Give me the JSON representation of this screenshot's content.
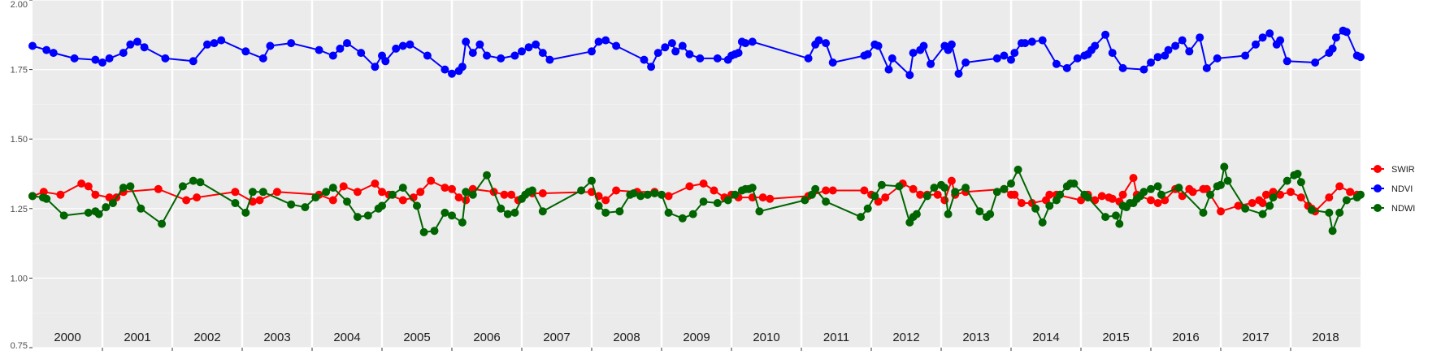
{
  "chart_data": {
    "type": "line",
    "title": "",
    "xlabel": "",
    "ylabel": "",
    "x_range": [
      2000.0,
      2019.0
    ],
    "ylim": [
      0.75,
      2.0
    ],
    "y_ticks": [
      0.75,
      1.0,
      1.25,
      1.5,
      1.75,
      2.0
    ],
    "y_tick_labels": [
      "0.75",
      "1.00",
      "1.25",
      "1.50",
      "1.75",
      "2.00"
    ],
    "year_labels": [
      "2000",
      "2001",
      "2002",
      "2003",
      "2004",
      "2005",
      "2006",
      "2007",
      "2008",
      "2009",
      "2010",
      "2011",
      "2012",
      "2013",
      "2014",
      "2015",
      "2016",
      "2017",
      "2018"
    ],
    "grid": true,
    "legend_position": "right",
    "marker": "circle",
    "series": [
      {
        "name": "SWIR",
        "color": "#ff0000",
        "x": [
          2000.0,
          2000.16,
          2000.4,
          2000.7,
          2000.8,
          2000.9,
          2001.1,
          2001.2,
          2001.3,
          2001.8,
          2002.2,
          2002.35,
          2002.9,
          2003.15,
          2003.25,
          2003.5,
          2004.1,
          2004.3,
          2004.45,
          2004.65,
          2004.9,
          2005.0,
          2005.1,
          2005.3,
          2005.45,
          2005.55,
          2005.7,
          2005.9,
          2006.0,
          2006.1,
          2006.2,
          2006.3,
          2006.6,
          2006.75,
          2006.85,
          2006.95,
          2007.15,
          2007.3,
          2008.0,
          2008.1,
          2008.2,
          2008.35,
          2008.65,
          2008.9,
          2009.1,
          2009.4,
          2009.6,
          2009.75,
          2009.9,
          2010.0,
          2010.1,
          2010.3,
          2010.45,
          2010.55,
          2011.1,
          2011.35,
          2011.45,
          2011.9,
          2012.0,
          2012.1,
          2012.2,
          2012.45,
          2012.6,
          2012.7,
          2012.8,
          2012.95,
          2013.05,
          2013.15,
          2013.2,
          2013.35,
          2013.9,
          2014.0,
          2014.05,
          2014.15,
          2014.3,
          2014.5,
          2014.55,
          2014.65,
          2015.0,
          2015.1,
          2015.2,
          2015.3,
          2015.4,
          2015.45,
          2015.55,
          2015.6,
          2015.75,
          2015.8,
          2016.0,
          2016.1,
          2016.2,
          2016.35,
          2016.45,
          2016.55,
          2016.6,
          2016.75,
          2016.8,
          2017.0,
          2017.25,
          2017.45,
          2017.55,
          2017.6,
          2017.65,
          2017.75,
          2017.85,
          2018.0,
          2018.15,
          2018.25,
          2018.3,
          2018.35,
          2018.55,
          2018.7,
          2018.85,
          2018.95
        ],
        "values": [
          1.295,
          1.31,
          1.3,
          1.34,
          1.33,
          1.3,
          1.29,
          1.29,
          1.31,
          1.32,
          1.28,
          1.29,
          1.31,
          1.275,
          1.28,
          1.31,
          1.3,
          1.28,
          1.33,
          1.31,
          1.34,
          1.31,
          1.3,
          1.28,
          1.29,
          1.31,
          1.35,
          1.325,
          1.32,
          1.29,
          1.28,
          1.32,
          1.31,
          1.3,
          1.3,
          1.28,
          1.305,
          1.305,
          1.31,
          1.295,
          1.28,
          1.315,
          1.31,
          1.31,
          1.295,
          1.33,
          1.34,
          1.315,
          1.29,
          1.3,
          1.29,
          1.29,
          1.29,
          1.285,
          1.295,
          1.315,
          1.315,
          1.315,
          1.3,
          1.275,
          1.29,
          1.34,
          1.32,
          1.3,
          1.3,
          1.3,
          1.28,
          1.35,
          1.3,
          1.31,
          1.32,
          1.3,
          1.3,
          1.27,
          1.27,
          1.28,
          1.3,
          1.3,
          1.28,
          1.3,
          1.28,
          1.295,
          1.29,
          1.285,
          1.275,
          1.3,
          1.36,
          1.3,
          1.28,
          1.27,
          1.28,
          1.32,
          1.295,
          1.32,
          1.31,
          1.32,
          1.32,
          1.24,
          1.26,
          1.27,
          1.28,
          1.27,
          1.3,
          1.31,
          1.3,
          1.31,
          1.29,
          1.26,
          1.25,
          1.24,
          1.29,
          1.33,
          1.31,
          1.3
        ]
      },
      {
        "name": "NDVI",
        "color": "#0000ff",
        "x": [
          2000.0,
          2000.2,
          2000.3,
          2000.6,
          2000.9,
          2001.0,
          2001.1,
          2001.3,
          2001.4,
          2001.5,
          2001.6,
          2001.9,
          2002.3,
          2002.5,
          2002.6,
          2002.7,
          2003.05,
          2003.3,
          2003.4,
          2003.7,
          2004.1,
          2004.3,
          2004.4,
          2004.5,
          2004.7,
          2004.9,
          2005.0,
          2005.05,
          2005.2,
          2005.3,
          2005.4,
          2005.65,
          2005.9,
          2006.0,
          2006.1,
          2006.15,
          2006.2,
          2006.3,
          2006.4,
          2006.5,
          2006.7,
          2006.9,
          2007.0,
          2007.1,
          2007.2,
          2007.3,
          2007.4,
          2008.0,
          2008.1,
          2008.2,
          2008.35,
          2008.75,
          2008.85,
          2008.95,
          2009.05,
          2009.15,
          2009.2,
          2009.3,
          2009.4,
          2009.55,
          2009.8,
          2009.95,
          2010.0,
          2010.05,
          2010.1,
          2010.15,
          2010.2,
          2010.3,
          2011.1,
          2011.2,
          2011.25,
          2011.35,
          2011.45,
          2011.9,
          2011.95,
          2012.05,
          2012.1,
          2012.25,
          2012.3,
          2012.55,
          2012.6,
          2012.7,
          2012.75,
          2012.85,
          2013.05,
          2013.1,
          2013.15,
          2013.25,
          2013.35,
          2013.8,
          2013.9,
          2014.0,
          2014.05,
          2014.15,
          2014.2,
          2014.3,
          2014.45,
          2014.65,
          2014.8,
          2014.95,
          2015.05,
          2015.1,
          2015.15,
          2015.2,
          2015.35,
          2015.45,
          2015.6,
          2015.9,
          2016.0,
          2016.1,
          2016.2,
          2016.25,
          2016.35,
          2016.45,
          2016.55,
          2016.7,
          2016.8,
          2016.95,
          2017.35,
          2017.5,
          2017.6,
          2017.7,
          2017.8,
          2017.85,
          2017.95,
          2018.35,
          2018.55,
          2018.6,
          2018.65,
          2018.75,
          2018.8,
          2018.95,
          2019.0
        ],
        "values": [
          1.835,
          1.82,
          1.81,
          1.79,
          1.785,
          1.775,
          1.79,
          1.81,
          1.84,
          1.85,
          1.83,
          1.79,
          1.78,
          1.84,
          1.845,
          1.855,
          1.815,
          1.79,
          1.835,
          1.845,
          1.82,
          1.8,
          1.825,
          1.845,
          1.81,
          1.76,
          1.8,
          1.78,
          1.825,
          1.835,
          1.84,
          1.8,
          1.75,
          1.735,
          1.745,
          1.76,
          1.85,
          1.81,
          1.84,
          1.8,
          1.79,
          1.8,
          1.815,
          1.83,
          1.84,
          1.81,
          1.785,
          1.815,
          1.85,
          1.855,
          1.835,
          1.785,
          1.76,
          1.81,
          1.83,
          1.845,
          1.815,
          1.835,
          1.805,
          1.79,
          1.79,
          1.785,
          1.8,
          1.805,
          1.81,
          1.85,
          1.845,
          1.85,
          1.79,
          1.84,
          1.855,
          1.845,
          1.775,
          1.8,
          1.805,
          1.84,
          1.835,
          1.75,
          1.79,
          1.73,
          1.81,
          1.82,
          1.835,
          1.77,
          1.835,
          1.82,
          1.84,
          1.735,
          1.775,
          1.79,
          1.8,
          1.785,
          1.81,
          1.845,
          1.845,
          1.85,
          1.855,
          1.77,
          1.755,
          1.79,
          1.8,
          1.805,
          1.82,
          1.835,
          1.875,
          1.81,
          1.755,
          1.75,
          1.775,
          1.795,
          1.8,
          1.82,
          1.835,
          1.855,
          1.815,
          1.865,
          1.755,
          1.79,
          1.8,
          1.84,
          1.865,
          1.88,
          1.84,
          1.855,
          1.78,
          1.775,
          1.81,
          1.825,
          1.865,
          1.89,
          1.885,
          1.8,
          1.795
        ]
      },
      {
        "name": "NDWI",
        "color": "#006400",
        "x": [
          2000.0,
          2000.15,
          2000.2,
          2000.45,
          2000.8,
          2000.9,
          2000.95,
          2001.05,
          2001.15,
          2001.3,
          2001.4,
          2001.55,
          2001.85,
          2002.15,
          2002.3,
          2002.4,
          2002.9,
          2003.05,
          2003.15,
          2003.3,
          2003.7,
          2003.9,
          2004.05,
          2004.2,
          2004.3,
          2004.5,
          2004.65,
          2004.8,
          2004.95,
          2005.0,
          2005.15,
          2005.3,
          2005.5,
          2005.6,
          2005.75,
          2005.9,
          2006.0,
          2006.15,
          2006.2,
          2006.3,
          2006.5,
          2006.7,
          2006.8,
          2006.9,
          2007.0,
          2007.05,
          2007.1,
          2007.15,
          2007.3,
          2007.85,
          2008.0,
          2008.1,
          2008.2,
          2008.4,
          2008.55,
          2008.6,
          2008.7,
          2008.8,
          2008.9,
          2009.0,
          2009.1,
          2009.3,
          2009.45,
          2009.6,
          2009.8,
          2009.95,
          2010.05,
          2010.15,
          2010.2,
          2010.25,
          2010.3,
          2010.4,
          2011.05,
          2011.15,
          2011.2,
          2011.35,
          2011.85,
          2011.95,
          2012.05,
          2012.15,
          2012.4,
          2012.55,
          2012.6,
          2012.65,
          2012.8,
          2012.9,
          2013.0,
          2013.05,
          2013.1,
          2013.2,
          2013.35,
          2013.55,
          2013.65,
          2013.7,
          2013.8,
          2013.9,
          2014.0,
          2014.1,
          2014.35,
          2014.45,
          2014.55,
          2014.65,
          2014.7,
          2014.8,
          2014.85,
          2014.9,
          2015.05,
          2015.1,
          2015.35,
          2015.5,
          2015.55,
          2015.6,
          2015.65,
          2015.7,
          2015.75,
          2015.8,
          2015.85,
          2015.9,
          2016.0,
          2016.1,
          2016.15,
          2016.4,
          2016.75,
          2016.85,
          2016.95,
          2017.0,
          2017.05,
          2017.1,
          2017.35,
          2017.6,
          2017.7,
          2017.75,
          2017.95,
          2018.05,
          2018.1,
          2018.15,
          2018.3,
          2018.55,
          2018.6,
          2018.7,
          2018.8,
          2018.95,
          2019.0
        ],
        "values": [
          1.295,
          1.29,
          1.285,
          1.225,
          1.235,
          1.24,
          1.23,
          1.255,
          1.27,
          1.325,
          1.33,
          1.25,
          1.195,
          1.33,
          1.35,
          1.345,
          1.27,
          1.235,
          1.31,
          1.31,
          1.265,
          1.255,
          1.29,
          1.31,
          1.325,
          1.275,
          1.22,
          1.225,
          1.25,
          1.26,
          1.3,
          1.325,
          1.26,
          1.165,
          1.17,
          1.235,
          1.225,
          1.2,
          1.31,
          1.3,
          1.37,
          1.25,
          1.23,
          1.235,
          1.285,
          1.3,
          1.31,
          1.315,
          1.24,
          1.315,
          1.35,
          1.26,
          1.235,
          1.24,
          1.3,
          1.305,
          1.295,
          1.3,
          1.305,
          1.3,
          1.235,
          1.215,
          1.23,
          1.275,
          1.27,
          1.28,
          1.3,
          1.315,
          1.32,
          1.32,
          1.325,
          1.24,
          1.28,
          1.3,
          1.32,
          1.275,
          1.22,
          1.25,
          1.295,
          1.335,
          1.33,
          1.2,
          1.22,
          1.23,
          1.295,
          1.325,
          1.335,
          1.325,
          1.23,
          1.31,
          1.325,
          1.24,
          1.22,
          1.23,
          1.31,
          1.32,
          1.34,
          1.39,
          1.25,
          1.2,
          1.26,
          1.28,
          1.3,
          1.33,
          1.34,
          1.34,
          1.3,
          1.29,
          1.22,
          1.225,
          1.195,
          1.26,
          1.255,
          1.27,
          1.27,
          1.285,
          1.295,
          1.31,
          1.32,
          1.33,
          1.3,
          1.325,
          1.235,
          1.3,
          1.33,
          1.335,
          1.4,
          1.35,
          1.25,
          1.23,
          1.26,
          1.29,
          1.35,
          1.37,
          1.375,
          1.345,
          1.245,
          1.235,
          1.17,
          1.235,
          1.28,
          1.29,
          1.3
        ]
      }
    ]
  }
}
